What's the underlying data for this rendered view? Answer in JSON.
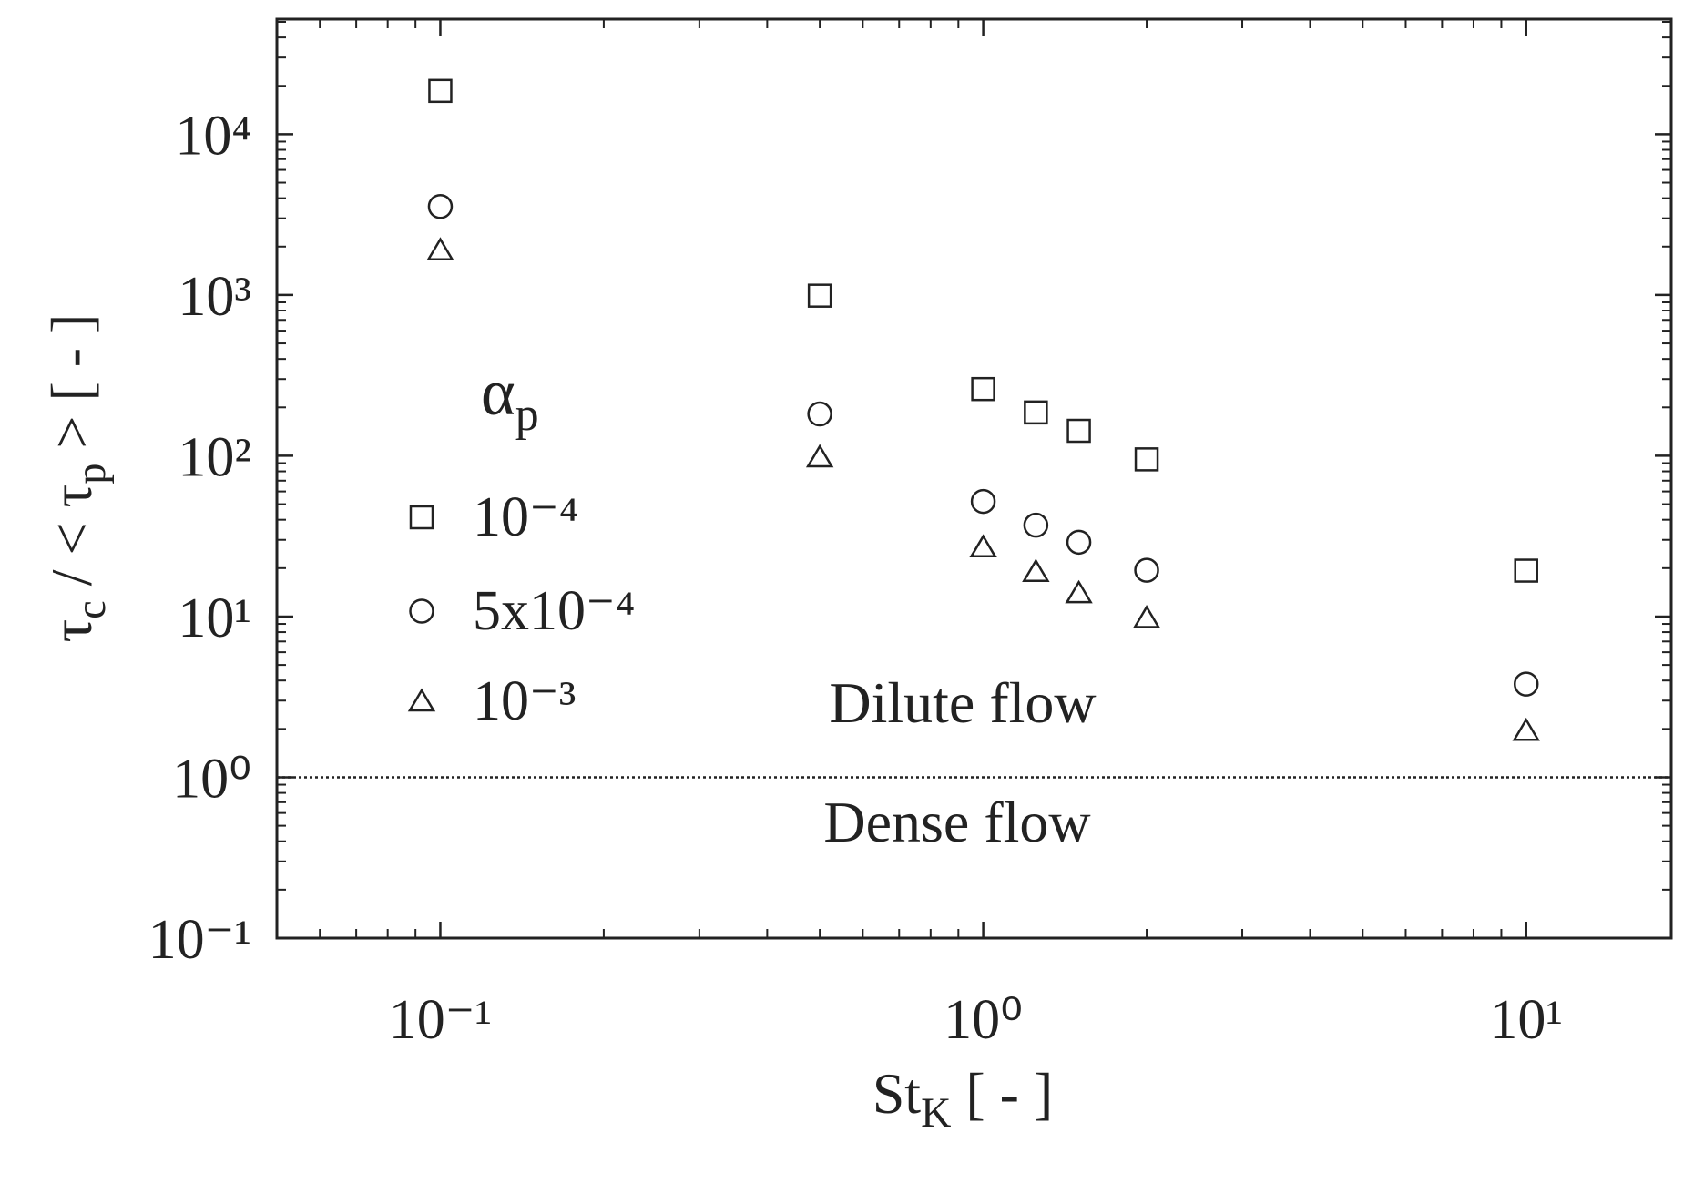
{
  "chart_data": {
    "type": "scatter",
    "xlabel": [
      {
        "text": "St"
      },
      {
        "text": "K",
        "sub": true
      },
      {
        "text": " [ - ]"
      }
    ],
    "ylabel": [
      {
        "text": "τ"
      },
      {
        "text": "c",
        "sub": true
      },
      {
        "text": " / < τ"
      },
      {
        "text": "p",
        "sub": true
      },
      {
        "text": " > [ - ]"
      }
    ],
    "xscale": "log",
    "yscale": "log",
    "xlim": [
      0.05,
      18.5
    ],
    "ylim": [
      0.1,
      52000
    ],
    "xticks": [
      {
        "value": 0.1,
        "label": "10⁻¹"
      },
      {
        "value": 1,
        "label": "10⁰"
      },
      {
        "value": 10,
        "label": "10¹"
      }
    ],
    "yticks": [
      {
        "value": 0.1,
        "label": "10⁻¹"
      },
      {
        "value": 1,
        "label": "10⁰"
      },
      {
        "value": 10,
        "label": "10¹"
      },
      {
        "value": 100,
        "label": "10²"
      },
      {
        "value": 1000,
        "label": "10³"
      },
      {
        "value": 10000,
        "label": "10⁴"
      }
    ],
    "legend_title": [
      {
        "text": "α"
      },
      {
        "text": "p",
        "sub": true
      }
    ],
    "legend": "left",
    "series": [
      {
        "name": "10⁻⁴",
        "marker": "square",
        "color": "#222222",
        "x": [
          0.1,
          0.5,
          1,
          1.25,
          1.5,
          2,
          10
        ],
        "values": [
          18600,
          990,
          260,
          186,
          143,
          95,
          19.3
        ]
      },
      {
        "name": "5x10⁻⁴",
        "marker": "circle",
        "color": "#222222",
        "x": [
          0.1,
          0.5,
          1,
          1.25,
          1.5,
          2,
          10
        ],
        "values": [
          3550,
          182,
          52,
          37,
          29,
          19.4,
          3.8
        ]
      },
      {
        "name": "10⁻³",
        "marker": "triangle",
        "color": "#222222",
        "x": [
          0.1,
          0.5,
          1,
          1.25,
          1.5,
          2,
          10
        ],
        "values": [
          1900,
          98,
          27,
          19,
          14,
          9.8,
          1.95
        ]
      }
    ],
    "hline": 1,
    "annotations": [
      "Dilute flow",
      "Dense flow"
    ]
  }
}
